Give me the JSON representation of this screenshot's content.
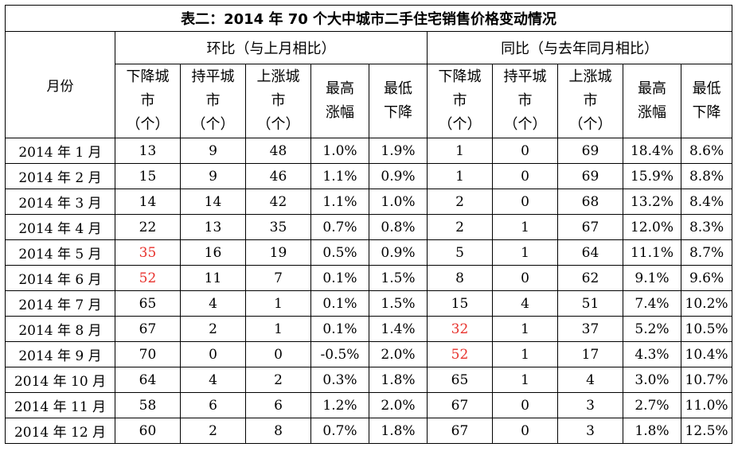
{
  "title": "表二：2014 年 70 个大中城市二手住宅销售价格变动情况",
  "header": {
    "month_label": "月份",
    "group_mom": "环比（与上月相比）",
    "group_yoy": "同比（与去年同月相比）",
    "sub_mom": [
      [
        "下降城",
        "市",
        "（个）"
      ],
      [
        "持平城",
        "市",
        "（个）"
      ],
      [
        "上涨城",
        "市",
        "（个）"
      ],
      [
        "最高",
        "涨幅"
      ],
      [
        "最低",
        "下降"
      ]
    ],
    "sub_yoy": [
      [
        "下降城",
        "市",
        "（个）"
      ],
      [
        "持平城",
        "市",
        "（个）"
      ],
      [
        "上涨城",
        "市",
        "（个）"
      ],
      [
        "最高",
        "涨幅"
      ],
      [
        "最低",
        "下降"
      ]
    ]
  },
  "rows": [
    {
      "month": "2014 年 1 月",
      "cells": [
        "13",
        "9",
        "48",
        "1.0%",
        "1.9%",
        "1",
        "0",
        "69",
        "18.4%",
        "8.6%"
      ],
      "red": []
    },
    {
      "month": "2014 年 2 月",
      "cells": [
        "15",
        "9",
        "46",
        "1.1%",
        "0.9%",
        "1",
        "0",
        "69",
        "15.9%",
        "8.8%"
      ],
      "red": []
    },
    {
      "month": "2014 年 3 月",
      "cells": [
        "14",
        "14",
        "42",
        "1.1%",
        "1.0%",
        "2",
        "0",
        "68",
        "13.2%",
        "8.4%"
      ],
      "red": []
    },
    {
      "month": "2014 年 4 月",
      "cells": [
        "22",
        "13",
        "35",
        "0.7%",
        "0.8%",
        "2",
        "1",
        "67",
        "12.0%",
        "8.3%"
      ],
      "red": []
    },
    {
      "month": "2014 年 5 月",
      "cells": [
        "35",
        "16",
        "19",
        "0.5%",
        "0.9%",
        "5",
        "1",
        "64",
        "11.1%",
        "8.7%"
      ],
      "red": [
        0
      ]
    },
    {
      "month": "2014 年 6 月",
      "cells": [
        "52",
        "11",
        "7",
        "0.1%",
        "1.5%",
        "8",
        "0",
        "62",
        "9.1%",
        "9.6%"
      ],
      "red": [
        0
      ]
    },
    {
      "month": "2014 年 7 月",
      "cells": [
        "65",
        "4",
        "1",
        "0.1%",
        "1.5%",
        "15",
        "4",
        "51",
        "7.4%",
        "10.2%"
      ],
      "red": []
    },
    {
      "month": "2014 年 8 月",
      "cells": [
        "67",
        "2",
        "1",
        "0.1%",
        "1.4%",
        "32",
        "1",
        "37",
        "5.2%",
        "10.5%"
      ],
      "red": [
        5
      ]
    },
    {
      "month": "2014 年 9 月",
      "cells": [
        "70",
        "0",
        "0",
        "-0.5%",
        "2.0%",
        "52",
        "1",
        "17",
        "4.3%",
        "10.4%"
      ],
      "red": [
        5
      ]
    },
    {
      "month": "2014 年 10 月",
      "cells": [
        "64",
        "4",
        "2",
        "0.3%",
        "1.8%",
        "65",
        "1",
        "4",
        "3.0%",
        "10.7%"
      ],
      "red": []
    },
    {
      "month": "2014 年 11 月",
      "cells": [
        "58",
        "6",
        "6",
        "1.2%",
        "2.0%",
        "67",
        "0",
        "3",
        "2.7%",
        "11.0%"
      ],
      "red": []
    },
    {
      "month": "2014 年 12 月",
      "cells": [
        "60",
        "2",
        "8",
        "0.7%",
        "1.8%",
        "67",
        "0",
        "3",
        "1.8%",
        "12.5%"
      ],
      "red": []
    }
  ],
  "colors": {
    "highlight": "#e8322d",
    "border": "#000000"
  }
}
